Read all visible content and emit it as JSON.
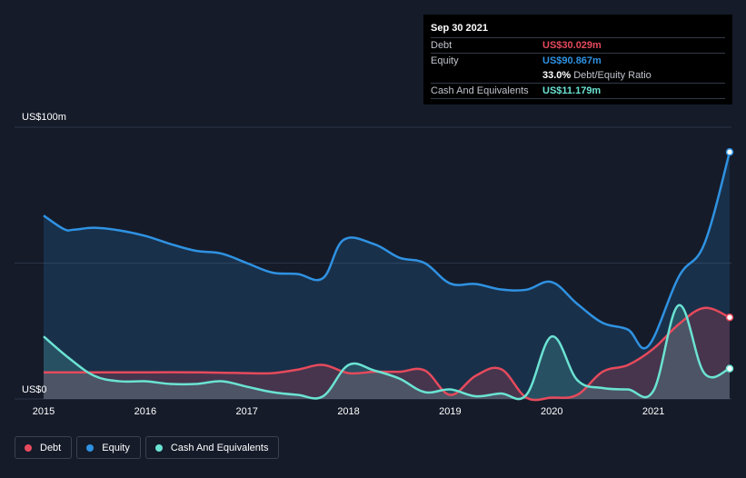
{
  "tooltip": {
    "date": "Sep 30 2021",
    "rows": {
      "debt": {
        "label": "Debt",
        "value": "US$30.029m",
        "color": "#e64a5c"
      },
      "equity": {
        "label": "Equity",
        "value": "US$90.867m",
        "color": "#2f92e2"
      },
      "ratio": {
        "value": "33.0%",
        "label": "Debt/Equity Ratio"
      },
      "cash": {
        "label": "Cash And Equivalents",
        "value": "US$11.179m",
        "color": "#6be3d3"
      }
    }
  },
  "legend": [
    {
      "label": "Debt",
      "color": "#e64a5c"
    },
    {
      "label": "Equity",
      "color": "#2f92e2"
    },
    {
      "label": "Cash And Equivalents",
      "color": "#6be3d3"
    }
  ],
  "chart_data": {
    "type": "area",
    "title": "",
    "xlabel": "",
    "ylabel": "",
    "y_max_label": "US$100m",
    "y_min_label": "US$0",
    "ylim": [
      0,
      100
    ],
    "xlim": [
      2015,
      2021.75
    ],
    "x_ticks": [
      2015,
      2016,
      2017,
      2018,
      2019,
      2020,
      2021
    ],
    "x_tick_labels": [
      "2015",
      "2016",
      "2017",
      "2018",
      "2019",
      "2020",
      "2021"
    ],
    "grid": true,
    "legend_position": "bottom-left",
    "series": [
      {
        "name": "Equity",
        "color": "#2f92e2",
        "x": [
          2015,
          2015.2,
          2015.3,
          2015.5,
          2015.75,
          2016,
          2016.25,
          2016.5,
          2016.75,
          2017,
          2017.25,
          2017.5,
          2017.75,
          2017.95,
          2018.25,
          2018.5,
          2018.75,
          2019,
          2019.25,
          2019.5,
          2019.75,
          2020,
          2020.25,
          2020.5,
          2020.75,
          2020.95,
          2021.25,
          2021.5,
          2021.75
        ],
        "values": [
          67.5,
          62.5,
          62.3,
          63.0,
          62.0,
          60.0,
          57.0,
          54.5,
          53.5,
          50.0,
          46.5,
          46.0,
          44.5,
          58.5,
          57.0,
          52.0,
          50.0,
          42.5,
          42.3,
          40.3,
          40.2,
          43.0,
          35.0,
          28.0,
          25.5,
          19.5,
          45.0,
          57.0,
          90.867
        ]
      },
      {
        "name": "Debt",
        "color": "#e64a5c",
        "x": [
          2015,
          2015.5,
          2016,
          2016.5,
          2017,
          2017.25,
          2017.5,
          2017.75,
          2018,
          2018.25,
          2018.5,
          2018.75,
          2019,
          2019.25,
          2019.5,
          2019.75,
          2020,
          2020.25,
          2020.5,
          2020.75,
          2021,
          2021.25,
          2021.5,
          2021.75
        ],
        "values": [
          9.8,
          9.8,
          9.8,
          9.8,
          9.5,
          9.5,
          10.8,
          12.5,
          9.5,
          10.0,
          10.0,
          10.5,
          1.5,
          8.5,
          11.0,
          0.5,
          0.5,
          1.5,
          10.0,
          12.5,
          18.5,
          27.5,
          33.5,
          30.029
        ]
      },
      {
        "name": "Cash And Equivalents",
        "color": "#6be3d3",
        "x": [
          2015,
          2015.25,
          2015.5,
          2015.75,
          2016,
          2016.25,
          2016.5,
          2016.75,
          2017,
          2017.25,
          2017.5,
          2017.75,
          2018,
          2018.25,
          2018.5,
          2018.75,
          2019,
          2019.25,
          2019.5,
          2019.75,
          2020,
          2020.25,
          2020.5,
          2020.75,
          2021,
          2021.25,
          2021.5,
          2021.75
        ],
        "values": [
          23.0,
          15.0,
          8.5,
          6.5,
          6.5,
          5.5,
          5.5,
          6.5,
          4.5,
          2.5,
          1.5,
          1.0,
          12.5,
          10.5,
          7.5,
          2.5,
          3.5,
          1.0,
          2.0,
          1.5,
          23.0,
          7.0,
          4.0,
          3.5,
          3.0,
          34.5,
          9.5,
          11.179
        ]
      }
    ]
  }
}
